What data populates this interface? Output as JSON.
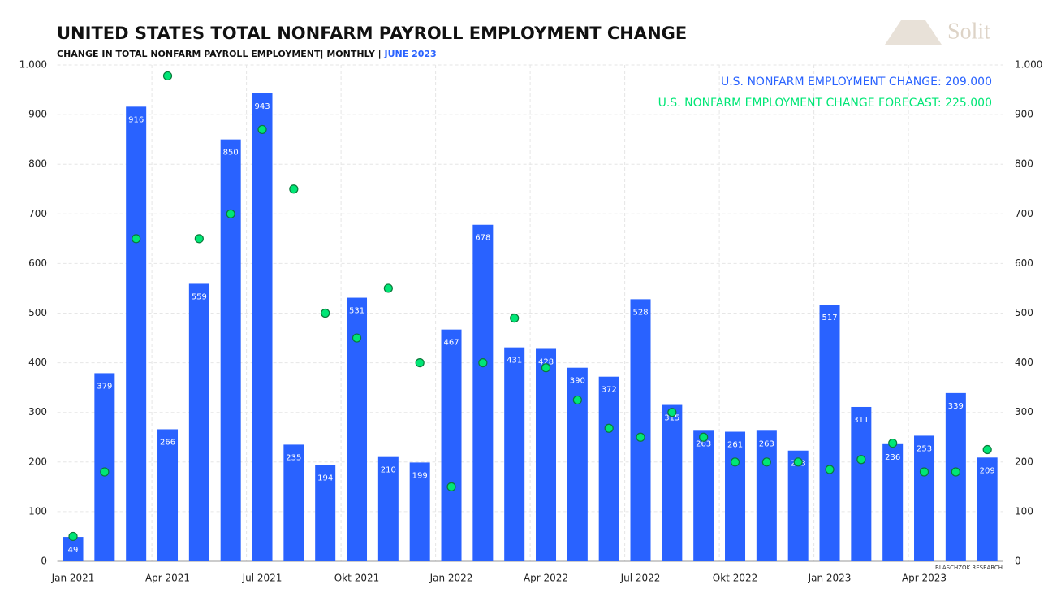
{
  "chart_data": {
    "type": "bar",
    "title": "UNITED STATES TOTAL NONFARM PAYROLL EMPLOYMENT CHANGE",
    "subtitle": "CHANGE IN TOTAL NONFARM PAYROLL EMPLOYMENT| MONTHLY | ",
    "subtitle_date": "JUNE 2023",
    "logo": "Solit",
    "source": "BLASCHZOK  RESEARCH",
    "categories": [
      "Jan 2021",
      null,
      null,
      "Apr 2021",
      null,
      null,
      "Jul 2021",
      null,
      null,
      "Okt 2021",
      null,
      null,
      "Jan 2022",
      null,
      null,
      "Apr 2022",
      null,
      null,
      "Jul 2022",
      null,
      null,
      "Okt 2022",
      null,
      null,
      "Jan 2023",
      null,
      null,
      "Apr 2023",
      null,
      null
    ],
    "series": [
      {
        "name": "U.S. NONFARM EMPLOYMENT CHANGE: 209.000",
        "type": "bar",
        "color": "#2962ff",
        "values": [
          49,
          379,
          916,
          266,
          559,
          850,
          943,
          235,
          194,
          531,
          210,
          199,
          467,
          678,
          431,
          428,
          390,
          372,
          528,
          315,
          263,
          261,
          263,
          223,
          517,
          311,
          236,
          253,
          339,
          209
        ]
      },
      {
        "name": "U.S. NONFARM EMPLOYMENT CHANGE FORECAST: 225.000",
        "type": "scatter",
        "color": "#00e676",
        "values": [
          50,
          180,
          650,
          978,
          650,
          700,
          870,
          750,
          500,
          450,
          550,
          400,
          150,
          400,
          490,
          390,
          325,
          268,
          250,
          300,
          250,
          200,
          200,
          200,
          185,
          205,
          238,
          180,
          180,
          225
        ]
      }
    ],
    "ylim": [
      0,
      1000
    ],
    "yticks": [
      0,
      100,
      200,
      300,
      400,
      500,
      600,
      700,
      800,
      900,
      {
        "value": 1000,
        "label": "1.000"
      }
    ],
    "y2lim": [
      0,
      1000
    ],
    "y2ticks": [
      0,
      100,
      200,
      300,
      400,
      500,
      600,
      700,
      800,
      900,
      {
        "value": 1000,
        "label": "1.000"
      }
    ],
    "grid": true
  }
}
